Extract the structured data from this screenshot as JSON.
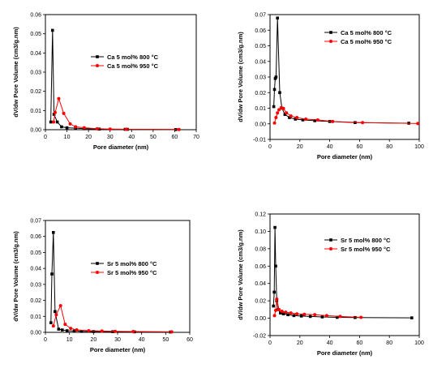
{
  "chart_data": [
    {
      "type": "line",
      "xlabel": "Pore diameter (nm)",
      "ylabel": "dV/dw Pore Volume (cm3/g.nm)",
      "xlim": [
        0,
        70
      ],
      "ylim": [
        0,
        0.06
      ],
      "xticks": [
        "0",
        "10",
        "20",
        "30",
        "40",
        "50",
        "60",
        "70"
      ],
      "yticks": [
        "0.00",
        "0.01",
        "0.02",
        "0.03",
        "0.04",
        "0.05",
        "0.06"
      ],
      "legend_position": "center-right",
      "series": [
        {
          "name": "Ca 5 mol% 800 °C",
          "color": "#000000",
          "marker": "square",
          "x": [
            2.5,
            3.3,
            4.0,
            5.5,
            7.5,
            10.0,
            14.0,
            18.0,
            25.0,
            37.0,
            38.0,
            60.5
          ],
          "y": [
            0.004,
            0.0518,
            0.008,
            0.004,
            0.0015,
            0.001,
            0.0008,
            0.0005,
            0.0003,
            0.0002,
            0.0002,
            0.0001
          ]
        },
        {
          "name": "Ca 5 mol% 950 °C",
          "color": "#ff0000",
          "marker": "circle",
          "x": [
            3.8,
            4.5,
            6.2,
            8.5,
            11.5,
            14.0,
            18.0,
            24.0,
            30.0,
            37.5,
            62.0
          ],
          "y": [
            0.004,
            0.009,
            0.0162,
            0.0085,
            0.003,
            0.0015,
            0.001,
            0.0005,
            0.0003,
            0.0002,
            0.0001
          ]
        }
      ]
    },
    {
      "type": "line",
      "xlabel": "Pore diameter (nm)",
      "ylabel": "dV/dw Pore Volume (cm3/g.nm)",
      "xlim": [
        0,
        100
      ],
      "ylim": [
        -0.01,
        0.07
      ],
      "xticks": [
        "0",
        "20",
        "40",
        "60",
        "80",
        "100"
      ],
      "yticks": [
        "-0.01",
        "0.00",
        "0.01",
        "0.02",
        "0.03",
        "0.04",
        "0.05",
        "0.06",
        "0.07"
      ],
      "legend_position": "top-right",
      "series": [
        {
          "name": "Ca 5 mol% 800 °C",
          "color": "#000000",
          "marker": "square",
          "x": [
            2.5,
            3.0,
            3.5,
            4.0,
            5.0,
            6.5,
            8.0,
            10.0,
            13.0,
            17.0,
            22.0,
            30.0,
            40.0,
            57.0,
            93.0
          ],
          "y": [
            0.011,
            0.022,
            0.029,
            0.03,
            0.0678,
            0.02,
            0.01,
            0.006,
            0.004,
            0.003,
            0.0025,
            0.002,
            0.0015,
            0.0008,
            0.0004
          ]
        },
        {
          "name": "Ca 5 mol% 950 °C",
          "color": "#ff0000",
          "marker": "circle",
          "x": [
            3.0,
            4.0,
            5.0,
            6.0,
            7.5,
            9.0,
            11.0,
            14.0,
            18.0,
            24.0,
            32.0,
            42.0,
            62.0,
            99.0
          ],
          "y": [
            0.0005,
            0.004,
            0.007,
            0.009,
            0.0103,
            0.0098,
            0.007,
            0.005,
            0.004,
            0.003,
            0.0025,
            0.0015,
            0.0008,
            0.0002
          ]
        }
      ]
    },
    {
      "type": "line",
      "xlabel": "Pore diameter (nm)",
      "ylabel": "dV/dw Pore Volume (cm3/g.nm)",
      "xlim": [
        0,
        60
      ],
      "ylim": [
        0,
        0.07
      ],
      "xticks": [
        "0",
        "10",
        "20",
        "30",
        "40",
        "50",
        "60"
      ],
      "yticks": [
        "0.00",
        "0.01",
        "0.02",
        "0.03",
        "0.04",
        "0.05",
        "0.06",
        "0.07"
      ],
      "legend_position": "center-right",
      "series": [
        {
          "name": "Sr 5 mol% 800 °C",
          "color": "#000000",
          "marker": "square",
          "x": [
            2.3,
            2.7,
            3.3,
            4.0,
            5.5,
            7.0,
            9.0,
            12.0,
            15.0,
            20.0,
            28.0,
            37.0,
            52.0
          ],
          "y": [
            0.006,
            0.0365,
            0.0625,
            0.013,
            0.002,
            0.0015,
            0.001,
            0.0008,
            0.0006,
            0.0005,
            0.0004,
            0.0003,
            0.0002
          ]
        },
        {
          "name": "Sr 5 mol% 950 °C",
          "color": "#ff0000",
          "marker": "circle",
          "x": [
            3.3,
            4.5,
            6.3,
            8.2,
            10.5,
            13.0,
            18.0,
            23.5,
            29.0,
            36.5,
            52.5
          ],
          "y": [
            0.004,
            0.011,
            0.0167,
            0.005,
            0.0025,
            0.0015,
            0.001,
            0.0008,
            0.0006,
            0.0005,
            0.0003
          ]
        }
      ]
    },
    {
      "type": "line",
      "xlabel": "Pore diameter (nm)",
      "ylabel": "dV/dw Pore Volume (cm3/g.nm)",
      "xlim": [
        0,
        100
      ],
      "ylim": [
        -0.02,
        0.12
      ],
      "xticks": [
        "0",
        "20",
        "40",
        "60",
        "80",
        "100"
      ],
      "yticks": [
        "-0.02",
        "0.00",
        "0.02",
        "0.04",
        "0.06",
        "0.08",
        "0.10",
        "0.12"
      ],
      "legend_position": "top-right",
      "series": [
        {
          "name": "Sr 5 mol% 800 °C",
          "color": "#000000",
          "marker": "square",
          "x": [
            2.3,
            2.8,
            3.3,
            3.8,
            4.5,
            5.5,
            7.0,
            9.0,
            12.0,
            16.0,
            21.0,
            27.0,
            35.0,
            45.0,
            57.0,
            95.0
          ],
          "y": [
            0.014,
            0.03,
            0.1045,
            0.06,
            0.02,
            0.01,
            0.006,
            0.005,
            0.004,
            0.003,
            0.0025,
            0.002,
            0.0015,
            0.001,
            0.0008,
            0.0004
          ]
        },
        {
          "name": "Sr 5 mol% 950 °C",
          "color": "#ff0000",
          "marker": "circle",
          "x": [
            3.0,
            3.8,
            4.5,
            6.0,
            8.0,
            10.5,
            14.0,
            18.0,
            23.0,
            30.0,
            38.0,
            47.0,
            61.0
          ],
          "y": [
            0.003,
            0.009,
            0.022,
            0.01,
            0.008,
            0.007,
            0.006,
            0.005,
            0.0045,
            0.004,
            0.003,
            0.002,
            0.001
          ]
        }
      ]
    }
  ]
}
